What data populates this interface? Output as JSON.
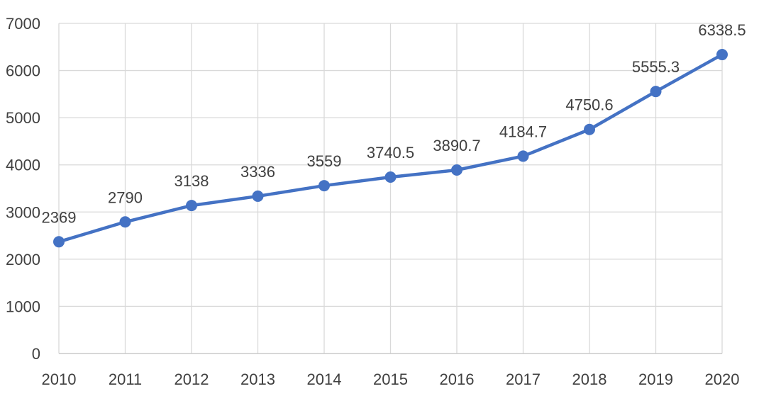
{
  "chart_data": {
    "type": "line",
    "title": "",
    "xlabel": "",
    "ylabel": "",
    "x": [
      "2010",
      "2011",
      "2012",
      "2013",
      "2014",
      "2015",
      "2016",
      "2017",
      "2018",
      "2019",
      "2020"
    ],
    "series": [
      {
        "values": [
          2369,
          2790,
          3138,
          3336,
          3559,
          3740.5,
          3890.7,
          4184.7,
          4750.6,
          5555.3,
          6338.5
        ],
        "labels": [
          "2369",
          "2790",
          "3138",
          "3336",
          "3559",
          "3740.5",
          "3890.7",
          "4184.7",
          "4750.6",
          "5555.3",
          "6338.5"
        ],
        "color": "#4472c4"
      }
    ],
    "ylim": [
      0,
      7000
    ],
    "yticks": [
      0,
      1000,
      2000,
      3000,
      4000,
      5000,
      6000,
      7000
    ],
    "grid": true,
    "marker": "circle",
    "legend": "none"
  }
}
